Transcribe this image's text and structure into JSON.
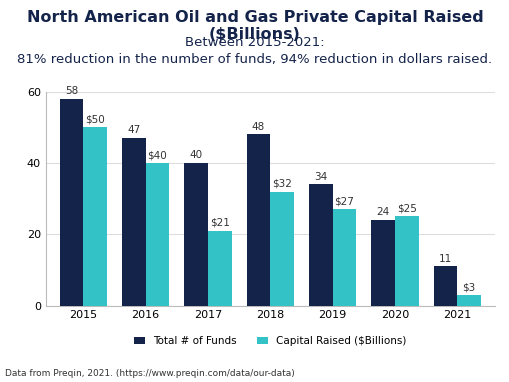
{
  "chart_data": {
    "type": "bar",
    "title": "North American Oil and Gas Private Capital Raised ($Billions)",
    "subtitle": "Between 2015-2021:\n81% reduction in the number of funds, 94% reduction in dollars raised.",
    "note": "Data from Preqin, 2021. (https://www.preqin.com/data/our-data)",
    "categories": [
      "2015",
      "2016",
      "2017",
      "2018",
      "2019",
      "2020",
      "2021"
    ],
    "series": [
      {
        "name": "Total # of Funds",
        "color": "#14234a",
        "values": [
          58,
          47,
          40,
          48,
          34,
          24,
          11
        ]
      },
      {
        "name": "Capital Raised ($Billions)",
        "color": "#33c3c6",
        "values": [
          50,
          40,
          21,
          32,
          27,
          25,
          3
        ],
        "value_labels": [
          "$50",
          "$40",
          "$21",
          "$32",
          "$27",
          "$25",
          "$3"
        ]
      }
    ],
    "ylim": [
      0,
      60
    ],
    "yticks": [
      0,
      20,
      40,
      60
    ],
    "grid": true,
    "data_labels": true,
    "legend": "bottom"
  }
}
